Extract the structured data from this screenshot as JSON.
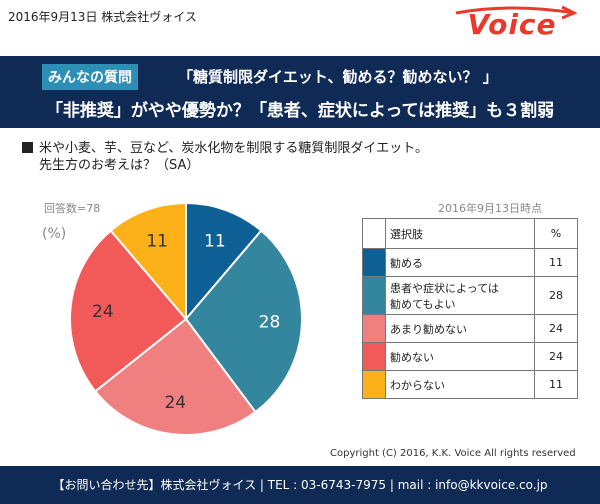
{
  "header": {
    "date_company": "2016年9月13日  株式会社ヴォイス",
    "logo_text": "Voice",
    "logo_color": "#e8392b"
  },
  "banner": {
    "tag": "みんなの質問",
    "line1": "「糖質制限ダイエット、勧める？勧めない？ 」",
    "line2": "「非推奨」がやや優勢か？「患者、症状によっては推奨」も３割弱"
  },
  "question": {
    "line1": "米や小麦、芋、豆など、炭水化物を制限する糖質制限ダイエット。",
    "line2": "先生方のお考えは？（SA）"
  },
  "respondents": "回答数=78",
  "unit_label": "(%)",
  "as_of": "2016年9月13日時点",
  "table": {
    "header_choice": "選択肢",
    "header_pct": "%"
  },
  "chart_data": {
    "type": "pie",
    "categories": [
      "勧める",
      "患者や症状によっては勧めてもよい",
      "あまり勧めない",
      "勧めない",
      "わからない"
    ],
    "table_labels": [
      [
        "勧める"
      ],
      [
        "患者や症状によっては",
        "勧めてもよい"
      ],
      [
        "あまり勧めない"
      ],
      [
        "勧めない"
      ],
      [
        "わからない"
      ]
    ],
    "values": [
      11,
      28,
      24,
      24,
      11
    ],
    "slice_labels": [
      "11",
      "28",
      "24",
      "24",
      "11"
    ],
    "colors": [
      "#0e5f96",
      "#33869e",
      "#f08080",
      "#f25a5a",
      "#fbb117"
    ],
    "label_colors": [
      "#ffffff",
      "#ffffff",
      "#333333",
      "#333333",
      "#333333"
    ]
  },
  "copyright": "Copyright  (C) 2016, K.K. Voice All rights reserved",
  "footer": {
    "text": "【お問い合わせ先】株式会社ヴォイス | TEL : 03-6743-7975 | mail : info@kkvoice.co.jp"
  }
}
